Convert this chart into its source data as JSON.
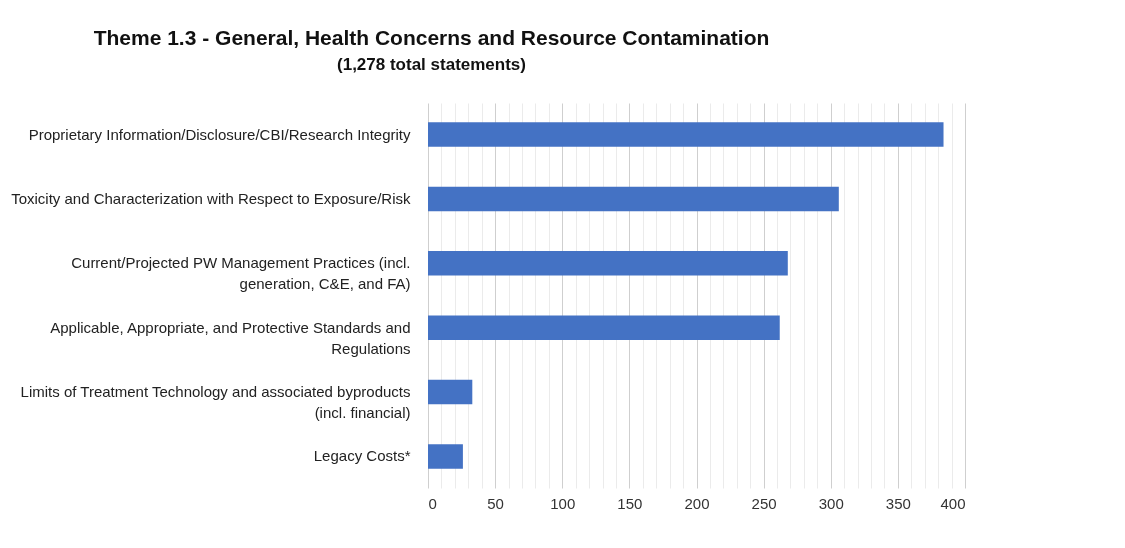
{
  "chart_data": {
    "type": "bar",
    "orientation": "horizontal",
    "title": "Theme 1.3 - General, Health Concerns and Resource Contamination",
    "subtitle": "(1,278 total statements)",
    "categories": [
      "Proprietary Information/Disclosure/CBI/Research Integrity",
      "Toxicity and Characterization with Respect to Exposure/Risk",
      "Current/Projected PW Management Practices (incl. generation, C&E, and FA)",
      "Applicable, Appropriate, and Protective Standards and Regulations",
      "Limits of Treatment Technology and associated byproducts (incl. financial)",
      "Legacy Costs*"
    ],
    "values": [
      384,
      306,
      268,
      262,
      33,
      26
    ],
    "color": "#4472c4",
    "xlim": [
      0,
      400
    ],
    "xticks": [
      0,
      {
        "value": 10,
        "label": null
      },
      {
        "value": 20,
        "label": null
      },
      {
        "value": 30,
        "label": null
      },
      {
        "value": 40,
        "label": null
      },
      50,
      {
        "value": 60,
        "label": null
      },
      {
        "value": 70,
        "label": null
      },
      {
        "value": 80,
        "label": null
      },
      {
        "value": 90,
        "label": null
      },
      100,
      {
        "value": 110,
        "label": null
      },
      {
        "value": 120,
        "label": null
      },
      {
        "value": 130,
        "label": null
      },
      {
        "value": 140,
        "label": null
      },
      150,
      {
        "value": 160,
        "label": null
      },
      {
        "value": 170,
        "label": null
      },
      {
        "value": 180,
        "label": null
      },
      {
        "value": 190,
        "label": null
      },
      200,
      {
        "value": 210,
        "label": null
      },
      {
        "value": 220,
        "label": null
      },
      {
        "value": 230,
        "label": null
      },
      {
        "value": 240,
        "label": null
      },
      250,
      {
        "value": 260,
        "label": null
      },
      {
        "value": 270,
        "label": null
      },
      {
        "value": 280,
        "label": null
      },
      {
        "value": 290,
        "label": null
      },
      300,
      {
        "value": 310,
        "label": null
      },
      {
        "value": 320,
        "label": null
      },
      {
        "value": 330,
        "label": null
      },
      {
        "value": 340,
        "label": null
      },
      350,
      {
        "value": 360,
        "label": null
      },
      {
        "value": 370,
        "label": null
      },
      {
        "value": 380,
        "label": null
      },
      {
        "value": 390,
        "label": null
      },
      400
    ],
    "grid": true
  }
}
